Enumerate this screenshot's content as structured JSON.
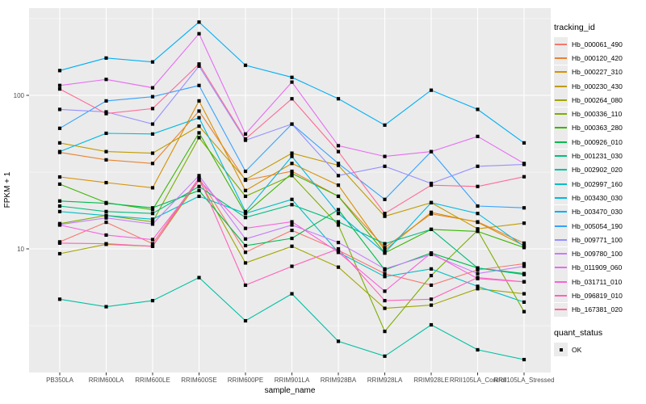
{
  "axes": {
    "x_label": "sample_name",
    "y_label": "FPKM + 1",
    "y_tick_labels": [
      "100",
      "10"
    ]
  },
  "legend": {
    "tracking_title": "tracking_id",
    "quant_title": "quant_status",
    "quant_items": [
      {
        "label": "OK",
        "symbol": "black-square"
      }
    ]
  },
  "style": {
    "panel_bg": "#ebebeb",
    "grid_color": "#ffffff",
    "tick_text_color": "#4d4d4d",
    "axis_title_color": "#000000",
    "point_color": "#000000"
  },
  "chart_data": {
    "type": "line",
    "x_axis": "sample_name",
    "y_axis": "FPKM + 1",
    "y_scale": "log10",
    "ylim": [
      1.6,
      370
    ],
    "y_major_ticks": [
      10,
      100
    ],
    "y_minor_ticks": [
      3.16,
      31.6,
      316
    ],
    "grid": true,
    "legend_position": "right",
    "point_shape": "filled-square",
    "categories": [
      "PB350LA",
      "RRIM600LA",
      "RRIM600LE",
      "RRIM600SE",
      "RRIM600PE",
      "RRIM901LA",
      "RRIM928BA",
      "RRIM928LA",
      "RRIM928LE",
      "RRII105LA_Control",
      "RRII105LA_Stressed"
    ],
    "series": [
      {
        "name": "Hb_000061_490",
        "color": "#F8766D",
        "values": [
          11.1,
          14.9,
          10.8,
          29,
          9.5,
          13.2,
          9.8,
          6.9,
          5.8,
          7.3,
          8.0
        ]
      },
      {
        "name": "Hb_000120_420",
        "color": "#EA8331",
        "values": [
          42.5,
          38,
          36,
          79,
          28,
          32,
          22,
          10.2,
          16.9,
          15,
          10.9
        ]
      },
      {
        "name": "Hb_000227_310",
        "color": "#D89000",
        "values": [
          29.4,
          27,
          25,
          92,
          24,
          36,
          26,
          9.8,
          17.3,
          14.9,
          10.5
        ]
      },
      {
        "name": "Hb_000230_430",
        "color": "#C09B00",
        "values": [
          49,
          43,
          42,
          63,
          28.3,
          42,
          35,
          16.3,
          20,
          13.5,
          14.7
        ]
      },
      {
        "name": "Hb_000264_080",
        "color": "#A3A500",
        "values": [
          9.3,
          10.7,
          10.4,
          28,
          8.1,
          10.4,
          7.6,
          4.1,
          4.3,
          5.5,
          5.1
        ]
      },
      {
        "name": "Hb_000336_110",
        "color": "#7CAE00",
        "values": [
          14.6,
          16.5,
          15,
          53,
          22,
          30,
          14.3,
          2.9,
          6.7,
          13.2,
          3.9
        ]
      },
      {
        "name": "Hb_000363_280",
        "color": "#39B600",
        "values": [
          26.4,
          20,
          18,
          57,
          17,
          31,
          22,
          9.4,
          13.4,
          13,
          10.2
        ]
      },
      {
        "name": "Hb_000926_010",
        "color": "#00BB4E",
        "values": [
          20.5,
          19.8,
          18.5,
          24,
          10.5,
          11.7,
          18,
          7.3,
          9.4,
          7.5,
          6.9
        ]
      },
      {
        "name": "Hb_001231_030",
        "color": "#00BF7D",
        "values": [
          19,
          17.5,
          17,
          25.5,
          16,
          19.4,
          15,
          10.8,
          13.4,
          7.5,
          6.8
        ]
      },
      {
        "name": "Hb_002902_020",
        "color": "#00C1A3",
        "values": [
          4.7,
          4.2,
          4.6,
          6.5,
          3.4,
          5.1,
          2.5,
          2.0,
          3.2,
          2.2,
          1.9
        ]
      },
      {
        "name": "Hb_002997_160",
        "color": "#00BFC4",
        "values": [
          17.5,
          16.5,
          15.6,
          22,
          17,
          21,
          9.5,
          6.6,
          7.4,
          5.7,
          4.5
        ]
      },
      {
        "name": "Hb_003430_030",
        "color": "#00BAE0",
        "values": [
          43,
          56.6,
          56,
          71.5,
          17.5,
          40,
          17,
          9.4,
          20,
          17,
          10.4
        ]
      },
      {
        "name": "Hb_003470_030",
        "color": "#00B0F6",
        "values": [
          145,
          175,
          165,
          300,
          157,
          131,
          95,
          64,
          108,
          81,
          49
        ]
      },
      {
        "name": "Hb_005054_190",
        "color": "#35A2FF",
        "values": [
          61,
          92,
          98,
          116,
          32,
          65,
          36,
          21,
          43,
          19,
          18.5
        ]
      },
      {
        "name": "Hb_009771_100",
        "color": "#9590FF",
        "values": [
          81,
          78,
          65,
          155,
          51,
          65,
          30,
          34.5,
          26.7,
          34.5,
          35.5
        ]
      },
      {
        "name": "Hb_009780_100",
        "color": "#C77CFF",
        "values": [
          14.4,
          15.9,
          14.5,
          30,
          11.6,
          14.3,
          11,
          7.4,
          9.2,
          6.9,
          7.7
        ]
      },
      {
        "name": "Hb_011909_060",
        "color": "#E76BF3",
        "values": [
          116,
          127,
          112,
          252,
          56,
          122,
          47,
          40,
          43,
          54,
          36
        ]
      },
      {
        "name": "Hb_031711_010",
        "color": "#FA62DB",
        "values": [
          14.3,
          12.3,
          11.5,
          28,
          13.6,
          15,
          9.5,
          5.3,
          9.4,
          6.4,
          6.1
        ]
      },
      {
        "name": "Hb_096819_010",
        "color": "#FF62BC",
        "values": [
          10.9,
          10.8,
          10.4,
          29,
          5.8,
          7.7,
          10,
          4.6,
          4.7,
          6.5,
          6.1
        ]
      },
      {
        "name": "Hb_167381_020",
        "color": "#FF6A98",
        "values": [
          110,
          76,
          82,
          160,
          52,
          95,
          43,
          17,
          26,
          25.5,
          29.5
        ]
      }
    ]
  }
}
